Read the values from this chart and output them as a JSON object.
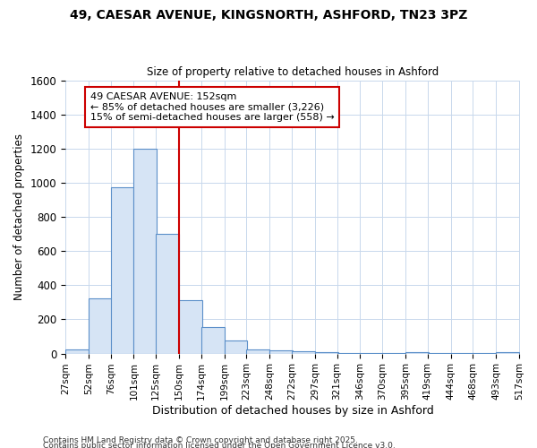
{
  "title1": "49, CAESAR AVENUE, KINGSNORTH, ASHFORD, TN23 3PZ",
  "title2": "Size of property relative to detached houses in Ashford",
  "xlabel": "Distribution of detached houses by size in Ashford",
  "ylabel": "Number of detached properties",
  "bar_left_edges": [
    27,
    52,
    76,
    101,
    125,
    150,
    174,
    199,
    223,
    248,
    272,
    297,
    321,
    346,
    370,
    395,
    419,
    444,
    468,
    493
  ],
  "bar_heights": [
    25,
    325,
    975,
    1200,
    700,
    310,
    155,
    75,
    25,
    18,
    12,
    8,
    5,
    4,
    2,
    6,
    2,
    2,
    2,
    8
  ],
  "bin_width": 25,
  "bar_facecolor": "#d6e4f5",
  "bar_edgecolor": "#5b8fc9",
  "grid_color": "#c8d8ec",
  "background_color": "#ffffff",
  "vline_x": 150,
  "vline_color": "#cc0000",
  "ylim": [
    0,
    1600
  ],
  "yticks": [
    0,
    200,
    400,
    600,
    800,
    1000,
    1200,
    1400,
    1600
  ],
  "annotation_line1": "49 CAESAR AVENUE: 152sqm",
  "annotation_line2": "← 85% of detached houses are smaller (3,226)",
  "annotation_line3": "15% of semi-detached houses are larger (558) →",
  "annotation_box_color": "#ffffff",
  "annotation_border_color": "#cc0000",
  "footnote1": "Contains HM Land Registry data © Crown copyright and database right 2025.",
  "footnote2": "Contains public sector information licensed under the Open Government Licence v3.0.",
  "tick_labels": [
    "27sqm",
    "52sqm",
    "76sqm",
    "101sqm",
    "125sqm",
    "150sqm",
    "174sqm",
    "199sqm",
    "223sqm",
    "248sqm",
    "272sqm",
    "297sqm",
    "321sqm",
    "346sqm",
    "370sqm",
    "395sqm",
    "419sqm",
    "444sqm",
    "468sqm",
    "493sqm",
    "517sqm"
  ],
  "figwidth": 6.0,
  "figheight": 5.0,
  "dpi": 100
}
